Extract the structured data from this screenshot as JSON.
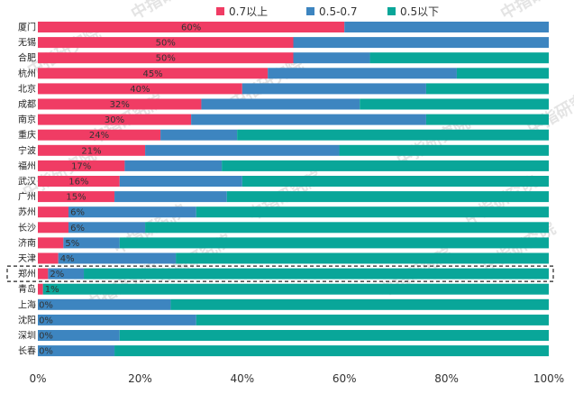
{
  "chart_data": {
    "type": "bar",
    "orientation": "horizontal",
    "stacked": "percent",
    "categories": [
      "厦门",
      "无锡",
      "合肥",
      "杭州",
      "北京",
      "成都",
      "南京",
      "重庆",
      "宁波",
      "福州",
      "武汉",
      "广州",
      "苏州",
      "长沙",
      "济南",
      "天津",
      "郑州",
      "青岛",
      "上海",
      "沈阳",
      "深圳",
      "长春"
    ],
    "series": [
      {
        "name": "0.7以上",
        "color": "#f03c64",
        "values": [
          60,
          50,
          50,
          45,
          40,
          32,
          30,
          24,
          21,
          17,
          16,
          15,
          6,
          6,
          5,
          4,
          2,
          1,
          0,
          0,
          0,
          0
        ],
        "labels": [
          "60%",
          "50%",
          "50%",
          "45%",
          "40%",
          "32%",
          "30%",
          "24%",
          "21%",
          "17%",
          "16%",
          "15%",
          "6%",
          "6%",
          "5%",
          "4%",
          "2%",
          "1%",
          "0%",
          "0%",
          "0%",
          "0%"
        ]
      },
      {
        "name": "0.5-0.7",
        "color": "#3d85c0",
        "values": [
          40,
          50,
          15,
          37,
          36,
          31,
          46,
          15,
          38,
          19,
          24,
          22,
          25,
          15,
          11,
          23,
          7,
          0,
          26,
          31,
          16,
          15
        ]
      },
      {
        "name": "0.5以下",
        "color": "#09a699",
        "values": [
          0,
          0,
          35,
          18,
          24,
          37,
          24,
          61,
          41,
          64,
          60,
          63,
          69,
          79,
          84,
          73,
          91,
          99,
          74,
          69,
          84,
          85
        ]
      }
    ],
    "xlim": [
      0,
      100
    ],
    "xticks": [
      "0%",
      "20%",
      "40%",
      "60%",
      "80%",
      "100%"
    ],
    "legend": "top",
    "highlight": "郑州",
    "grid": false
  },
  "watermark": "中指研究院"
}
